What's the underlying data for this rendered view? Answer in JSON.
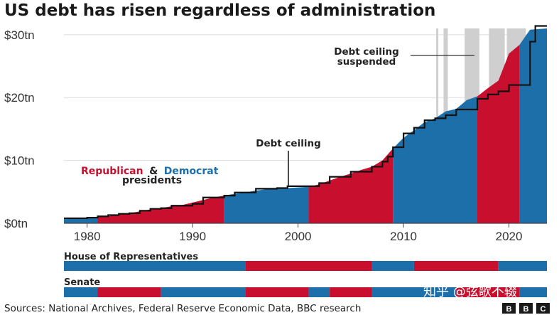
{
  "chart_data": {
    "type": "area",
    "title": "US debt has risen regardless of administration",
    "y_unit_suffix": "tn",
    "ylim": [
      0,
      31
    ],
    "yticks": [
      0,
      10,
      20,
      30
    ],
    "ytick_labels": [
      "$0tn",
      "$10tn",
      "$20tn",
      "$30tn"
    ],
    "xlim": [
      1977.8,
      2023.6
    ],
    "xticks": [
      1980,
      1990,
      2000,
      2010,
      2020
    ],
    "xtick_labels": [
      "1980",
      "1990",
      "2000",
      "2010",
      "2020"
    ],
    "grid": true,
    "colors": {
      "republican": "#c8102e",
      "democrat": "#1d6fa9",
      "ceiling": "#111111",
      "suspended": "#cfcfcf"
    },
    "debt_series": {
      "name": "Debt",
      "x": [
        1977.8,
        1979,
        1980,
        1981,
        1982,
        1983,
        1984,
        1985,
        1986,
        1987,
        1988,
        1989,
        1990,
        1991,
        1992,
        1993,
        1994,
        1995,
        1996,
        1997,
        1998,
        1999,
        2000,
        2001,
        2002,
        2003,
        2004,
        2005,
        2006,
        2007,
        2008,
        2009,
        2010,
        2011,
        2012,
        2013,
        2014,
        2015,
        2016,
        2017,
        2018,
        2019,
        2020,
        2021,
        2022,
        2023.6
      ],
      "y": [
        0.7,
        0.8,
        0.9,
        1.0,
        1.1,
        1.4,
        1.6,
        1.9,
        2.2,
        2.4,
        2.7,
        2.9,
        3.3,
        3.7,
        4.1,
        4.4,
        4.7,
        4.9,
        5.2,
        5.4,
        5.5,
        5.6,
        5.7,
        5.8,
        6.2,
        6.8,
        7.4,
        7.9,
        8.5,
        9.0,
        10.0,
        11.9,
        13.6,
        14.8,
        16.1,
        16.7,
        17.8,
        18.2,
        19.6,
        20.2,
        21.5,
        22.7,
        27.0,
        28.4,
        30.8,
        31.0
      ]
    },
    "presidencies": [
      {
        "party": "democrat",
        "start": 1977.8,
        "end": 1981
      },
      {
        "party": "republican",
        "start": 1981,
        "end": 1993
      },
      {
        "party": "democrat",
        "start": 1993,
        "end": 2001
      },
      {
        "party": "republican",
        "start": 2001,
        "end": 2009
      },
      {
        "party": "democrat",
        "start": 2009,
        "end": 2017
      },
      {
        "party": "republican",
        "start": 2017,
        "end": 2021
      },
      {
        "party": "democrat",
        "start": 2021,
        "end": 2023.6
      }
    ],
    "ceiling_series": {
      "name": "Debt ceiling",
      "x": [
        1977.8,
        1980,
        1981,
        1982,
        1983,
        1984,
        1985,
        1986,
        1987,
        1988,
        1989,
        1990,
        1991,
        1992,
        1993,
        1994,
        1995,
        1996,
        1997,
        1998,
        1999,
        2000,
        2001,
        2002,
        2003,
        2004,
        2005,
        2006,
        2007,
        2008,
        2008.5,
        2009,
        2010,
        2011,
        2012,
        2013,
        2013.6,
        2014,
        2015,
        2016,
        2017,
        2018,
        2019,
        2020,
        2021,
        2022,
        2022.5,
        2023,
        2023.6
      ],
      "y": [
        0.8,
        0.9,
        1.1,
        1.3,
        1.5,
        1.6,
        2.0,
        2.3,
        2.4,
        2.8,
        2.8,
        3.1,
        4.1,
        4.1,
        4.4,
        4.9,
        4.9,
        5.5,
        5.5,
        5.6,
        5.9,
        5.9,
        5.9,
        6.4,
        7.4,
        7.4,
        8.2,
        8.2,
        9.0,
        9.8,
        10.6,
        12.1,
        14.3,
        15.2,
        16.4,
        16.7,
        16.7,
        17.2,
        18.1,
        18.1,
        19.8,
        20.5,
        21.0,
        22.0,
        22.0,
        28.9,
        31.4,
        31.4,
        31.4
      ]
    },
    "suspended_periods": [
      {
        "start": 2013.1,
        "end": 2013.3
      },
      {
        "start": 2013.8,
        "end": 2014.2
      },
      {
        "start": 2015.8,
        "end": 2017.2
      },
      {
        "start": 2018.1,
        "end": 2019.6
      },
      {
        "start": 2019.8,
        "end": 2021.6
      }
    ],
    "annotations": {
      "ceiling_label": "Debt ceiling",
      "suspended_label_line1": "Debt ceiling",
      "suspended_label_line2": "suspended"
    },
    "legend": {
      "republican_word": "Republican",
      "ampersand": "&",
      "democrat_word": "Democrat",
      "line2": "presidents"
    },
    "congress": {
      "house": {
        "label": "House of Representatives",
        "segments": [
          {
            "party": "democrat",
            "start": 1977.8,
            "end": 1995
          },
          {
            "party": "republican",
            "start": 1995,
            "end": 2007
          },
          {
            "party": "democrat",
            "start": 2007,
            "end": 2011
          },
          {
            "party": "republican",
            "start": 2011,
            "end": 2019
          },
          {
            "party": "democrat",
            "start": 2019,
            "end": 2023.6
          }
        ]
      },
      "senate": {
        "label": "Senate",
        "segments": [
          {
            "party": "democrat",
            "start": 1977.8,
            "end": 1981
          },
          {
            "party": "republican",
            "start": 1981,
            "end": 1987
          },
          {
            "party": "democrat",
            "start": 1987,
            "end": 1995
          },
          {
            "party": "republican",
            "start": 1995,
            "end": 2001
          },
          {
            "party": "democrat",
            "start": 2001,
            "end": 2003
          },
          {
            "party": "republican",
            "start": 2003,
            "end": 2007
          },
          {
            "party": "democrat",
            "start": 2007,
            "end": 2015
          },
          {
            "party": "republican",
            "start": 2015,
            "end": 2021
          },
          {
            "party": "democrat",
            "start": 2021,
            "end": 2023.6
          }
        ]
      }
    }
  },
  "footer": {
    "source": "Sources: National Archives, Federal Reserve Economic Data, BBC research",
    "bbc_letters": [
      "B",
      "B",
      "C"
    ]
  },
  "watermark": "知乎 @弦歌不辍"
}
